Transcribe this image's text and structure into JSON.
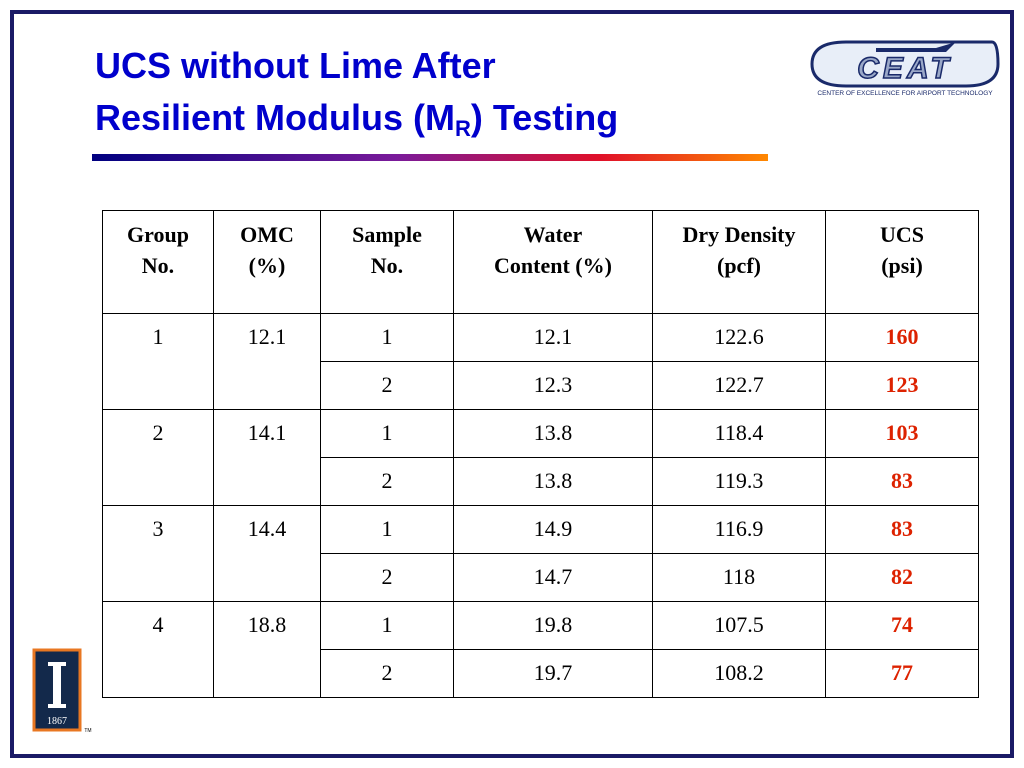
{
  "title": {
    "line1": "UCS without Lime After",
    "line2_main": "Resilient Modulus (M",
    "line2_sub": "R",
    "line2_end": ") Testing"
  },
  "logo": {
    "mark": "CEAT",
    "caption": "CENTER OF EXCELLENCE FOR AIRPORT TECHNOLOGY"
  },
  "university_logo": {
    "year": "1867",
    "trademark": "TM"
  },
  "table": {
    "headers": [
      [
        "Group",
        "No."
      ],
      [
        "OMC",
        "(%)"
      ],
      [
        "Sample",
        "No."
      ],
      [
        "Water",
        "Content (%)"
      ],
      [
        "Dry Density",
        "(pcf)"
      ],
      [
        "UCS",
        "(psi)"
      ]
    ],
    "groups": [
      {
        "group": "1",
        "omc": "12.1",
        "samples": [
          [
            "1",
            "12.1",
            "122.6",
            "160"
          ],
          [
            "2",
            "12.3",
            "122.7",
            "123"
          ]
        ]
      },
      {
        "group": "2",
        "omc": "14.1",
        "samples": [
          [
            "1",
            "13.8",
            "118.4",
            "103"
          ],
          [
            "2",
            "13.8",
            "119.3",
            "83"
          ]
        ]
      },
      {
        "group": "3",
        "omc": "14.4",
        "samples": [
          [
            "1",
            "14.9",
            "116.9",
            "83"
          ],
          [
            "2",
            "14.7",
            "118",
            "82"
          ]
        ]
      },
      {
        "group": "4",
        "omc": "18.8",
        "samples": [
          [
            "1",
            "19.8",
            "107.5",
            "74"
          ],
          [
            "2",
            "19.7",
            "108.2",
            "77"
          ]
        ]
      }
    ]
  }
}
